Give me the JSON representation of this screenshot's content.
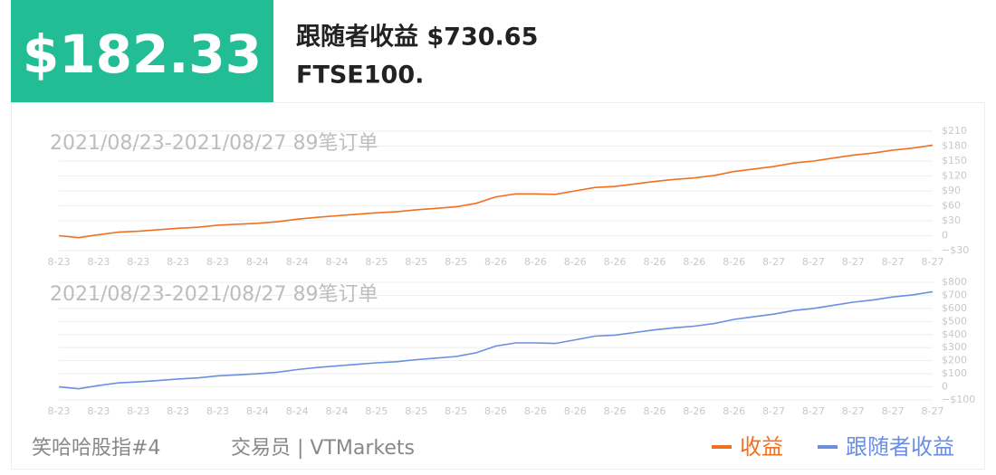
{
  "header": {
    "amount": "$182.33",
    "follower_profit": "跟随者收益 $730.65",
    "symbol": "FTSE100."
  },
  "footer": {
    "strategy": "笑哈哈股指#4",
    "trader": "交易员 | VTMarkets"
  },
  "chart_data": [
    {
      "type": "line",
      "title": "2021/08/23-2021/08/27 89笔订单",
      "categories": [
        "8-23",
        null,
        "8-23",
        null,
        "8-23",
        null,
        "8-23",
        null,
        "8-23",
        null,
        "8-24",
        null,
        "8-24",
        null,
        "8-24",
        null,
        "8-25",
        null,
        "8-25",
        null,
        "8-25",
        null,
        "8-26",
        null,
        "8-26",
        null,
        "8-26",
        null,
        "8-26",
        null,
        "8-26",
        null,
        "8-26",
        null,
        "8-26",
        null,
        "8-27",
        null,
        "8-27",
        null,
        "8-27",
        null,
        "8-27",
        null,
        "8-27"
      ],
      "series": [
        {
          "name": "收益",
          "color": "#f07020",
          "values": [
            0,
            -4,
            2,
            7,
            9,
            12,
            15,
            17,
            21,
            23,
            25,
            28,
            33,
            37,
            40,
            43,
            46,
            48,
            52,
            55,
            58,
            65,
            78,
            84,
            84,
            83,
            90,
            97,
            99,
            104,
            109,
            113,
            116,
            121,
            129,
            134,
            139,
            146,
            150,
            156,
            162,
            166,
            172,
            176,
            182
          ]
        }
      ],
      "ylim": [
        -30,
        210
      ],
      "yticks": [
        {
          "value": -30,
          "label": "−$30"
        },
        0,
        {
          "value": 30,
          "label": "$30"
        },
        {
          "value": 60,
          "label": "$60"
        },
        {
          "value": 90,
          "label": "$90"
        },
        {
          "value": 120,
          "label": "$120"
        },
        {
          "value": 150,
          "label": "$150"
        },
        {
          "value": 180,
          "label": "$180"
        },
        {
          "value": 210,
          "label": "$210"
        }
      ],
      "grid": true
    },
    {
      "type": "line",
      "title": "2021/08/23-2021/08/27 89笔订单",
      "categories": [
        "8-23",
        null,
        "8-23",
        null,
        "8-23",
        null,
        "8-23",
        null,
        "8-23",
        null,
        "8-24",
        null,
        "8-24",
        null,
        "8-24",
        null,
        "8-25",
        null,
        "8-25",
        null,
        "8-25",
        null,
        "8-26",
        null,
        "8-26",
        null,
        "8-26",
        null,
        "8-26",
        null,
        "8-26",
        null,
        "8-26",
        null,
        "8-26",
        null,
        "8-27",
        null,
        "8-27",
        null,
        "8-27",
        null,
        "8-27",
        null,
        "8-27"
      ],
      "series": [
        {
          "name": "跟随者收益",
          "color": "#6a8ee0",
          "values": [
            0,
            -15,
            10,
            30,
            38,
            48,
            60,
            68,
            84,
            92,
            100,
            112,
            132,
            148,
            160,
            172,
            184,
            192,
            208,
            220,
            232,
            260,
            312,
            336,
            336,
            332,
            360,
            388,
            396,
            416,
            436,
            452,
            464,
            484,
            516,
            536,
            556,
            584,
            600,
            624,
            648,
            664,
            688,
            704,
            728
          ]
        }
      ],
      "ylim": [
        -100,
        800
      ],
      "yticks": [
        {
          "value": -100,
          "label": "−$100"
        },
        0,
        {
          "value": 100,
          "label": "$100"
        },
        {
          "value": 200,
          "label": "$200"
        },
        {
          "value": 300,
          "label": "$300"
        },
        {
          "value": 400,
          "label": "$400"
        },
        {
          "value": 500,
          "label": "$500"
        },
        {
          "value": 600,
          "label": "$600"
        },
        {
          "value": 700,
          "label": "$700"
        },
        {
          "value": 800,
          "label": "$800"
        }
      ],
      "grid": true
    }
  ]
}
